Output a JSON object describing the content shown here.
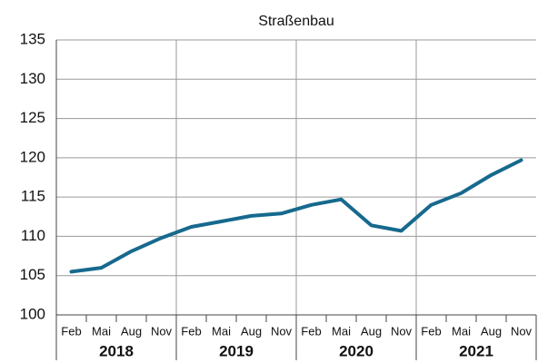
{
  "chart_data": {
    "type": "line",
    "title": "Straßenbau",
    "categories": [
      "Feb",
      "Mai",
      "Aug",
      "Nov",
      "Feb",
      "Mai",
      "Aug",
      "Nov",
      "Feb",
      "Mai",
      "Aug",
      "Nov",
      "Feb",
      "Mai",
      "Aug",
      "Nov"
    ],
    "years": [
      "2018",
      "2019",
      "2020",
      "2021"
    ],
    "values": [
      105.5,
      106.0,
      108.1,
      109.8,
      111.2,
      111.9,
      112.6,
      112.9,
      114.0,
      114.7,
      111.4,
      110.7,
      114.0,
      115.5,
      117.8,
      119.7
    ],
    "color": "#17698e",
    "ylim": [
      100,
      135
    ],
    "yticks": [
      100,
      105,
      110,
      115,
      120,
      125,
      130,
      135
    ],
    "grid": true
  }
}
